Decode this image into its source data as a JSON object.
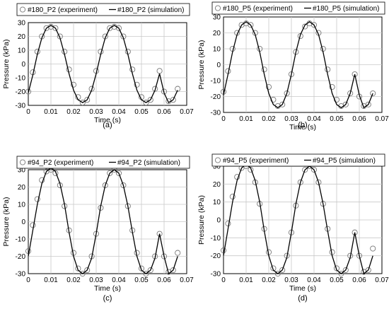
{
  "chart_data": [
    {
      "panel": "(a)",
      "type": "line",
      "xlabel": "Time (s)",
      "ylabel": "Pressure (kPa)",
      "xlim": [
        0,
        0.07
      ],
      "ylim": [
        -30,
        30
      ],
      "xticks": [
        "0",
        "0.01",
        "0.02",
        "0.03",
        "0.04",
        "0.05",
        "0.06",
        "0.07"
      ],
      "yticks": [
        "-30",
        "-20",
        "-10",
        "0",
        "10",
        "20",
        "30"
      ],
      "grid": true,
      "legend_position": "top",
      "series": [
        {
          "name": "#180_P2 (experiment)",
          "marker": "circle",
          "color": "#777777",
          "x": [
            0,
            0.002,
            0.004,
            0.006,
            0.008,
            0.01,
            0.012,
            0.014,
            0.016,
            0.018,
            0.02,
            0.022,
            0.024,
            0.026,
            0.028,
            0.03,
            0.032,
            0.034,
            0.036,
            0.038,
            0.04,
            0.042,
            0.044,
            0.046,
            0.048,
            0.05,
            0.052,
            0.054,
            0.056,
            0.058,
            0.06,
            0.062,
            0.064,
            0.066
          ],
          "y": [
            -20,
            -6,
            9,
            20,
            26,
            27,
            26,
            20,
            9,
            -4,
            -15,
            -24,
            -28,
            -26,
            -18,
            -5,
            9,
            20,
            26,
            27,
            26,
            20,
            9,
            -4,
            -15,
            -24,
            -28,
            -26,
            -18,
            -5,
            -20,
            -27,
            -26,
            -18
          ]
        },
        {
          "name": "#180_P2 (simulation)",
          "marker": "line",
          "color": "#000000",
          "x": [
            0,
            0.002,
            0.004,
            0.006,
            0.008,
            0.01,
            0.012,
            0.014,
            0.016,
            0.018,
            0.02,
            0.022,
            0.024,
            0.026,
            0.028,
            0.03,
            0.032,
            0.034,
            0.036,
            0.038,
            0.04,
            0.042,
            0.044,
            0.046,
            0.048,
            0.05,
            0.052,
            0.054,
            0.056,
            0.058,
            0.06,
            0.062,
            0.064,
            0.066
          ],
          "y": [
            -21,
            -8,
            7,
            19,
            26,
            28,
            26,
            19,
            7,
            -7,
            -19,
            -26,
            -28,
            -26,
            -19,
            -7,
            7,
            19,
            26,
            28,
            26,
            19,
            7,
            -7,
            -19,
            -26,
            -28,
            -26,
            -19,
            -7,
            -21,
            -28,
            -26,
            -19
          ]
        }
      ]
    },
    {
      "panel": "(b)",
      "type": "line",
      "xlabel": "Time (s)",
      "ylabel": "Pressure (kPa)",
      "xlim": [
        0,
        0.07
      ],
      "ylim": [
        -30,
        30
      ],
      "xticks": [
        "0",
        "0.01",
        "0.02",
        "0.03",
        "0.04",
        "0.05",
        "0.06",
        "0.07"
      ],
      "yticks": [
        "-30",
        "-20",
        "-10",
        "0",
        "10",
        "20",
        "30"
      ],
      "grid": true,
      "legend_position": "top",
      "series": [
        {
          "name": "#180_P5 (experiment)",
          "marker": "circle",
          "color": "#777777",
          "x": [
            0,
            0.002,
            0.004,
            0.006,
            0.008,
            0.01,
            0.012,
            0.014,
            0.016,
            0.018,
            0.02,
            0.022,
            0.024,
            0.026,
            0.028,
            0.03,
            0.032,
            0.034,
            0.036,
            0.038,
            0.04,
            0.042,
            0.044,
            0.046,
            0.048,
            0.05,
            0.052,
            0.054,
            0.056,
            0.058,
            0.06,
            0.062,
            0.064,
            0.066
          ],
          "y": [
            -17,
            -4,
            10,
            20,
            25,
            26,
            25,
            20,
            10,
            -3,
            -14,
            -22,
            -26,
            -25,
            -18,
            -6,
            8,
            18,
            24,
            26,
            25,
            20,
            10,
            -3,
            -14,
            -22,
            -26,
            -25,
            -18,
            -6,
            -20,
            -26,
            -25,
            -18
          ]
        },
        {
          "name": "#180_P5 (simulation)",
          "marker": "line",
          "color": "#000000",
          "x": [
            0,
            0.002,
            0.004,
            0.006,
            0.008,
            0.01,
            0.012,
            0.014,
            0.016,
            0.018,
            0.02,
            0.022,
            0.024,
            0.026,
            0.028,
            0.03,
            0.032,
            0.034,
            0.036,
            0.038,
            0.04,
            0.042,
            0.044,
            0.046,
            0.048,
            0.05,
            0.052,
            0.054,
            0.056,
            0.058,
            0.06,
            0.062,
            0.064,
            0.066
          ],
          "y": [
            -19,
            -6,
            8,
            19,
            25,
            27,
            25,
            19,
            8,
            -6,
            -18,
            -25,
            -27,
            -25,
            -18,
            -6,
            8,
            19,
            25,
            27,
            25,
            19,
            8,
            -6,
            -18,
            -25,
            -27,
            -25,
            -18,
            -6,
            -19,
            -27,
            -25,
            -18
          ]
        }
      ]
    },
    {
      "panel": "(c)",
      "type": "line",
      "xlabel": "Time (s)",
      "ylabel": "Pressure (kPa)",
      "xlim": [
        0,
        0.07
      ],
      "ylim": [
        -30,
        30
      ],
      "xticks": [
        "0",
        "0.01",
        "0.02",
        "0.03",
        "0.04",
        "0.05",
        "0.06",
        "0.07"
      ],
      "yticks": [
        "-30",
        "-20",
        "-10",
        "0",
        "10",
        "20",
        "30"
      ],
      "grid": true,
      "legend_position": "top",
      "series": [
        {
          "name": "#94_P2 (experiment)",
          "marker": "circle",
          "color": "#777777",
          "x": [
            0,
            0.002,
            0.004,
            0.006,
            0.008,
            0.01,
            0.012,
            0.014,
            0.016,
            0.018,
            0.02,
            0.022,
            0.024,
            0.026,
            0.028,
            0.03,
            0.032,
            0.034,
            0.036,
            0.038,
            0.04,
            0.042,
            0.044,
            0.046,
            0.048,
            0.05,
            0.052,
            0.054,
            0.056,
            0.058,
            0.06,
            0.062,
            0.064,
            0.066
          ],
          "y": [
            -17,
            -2,
            13,
            24,
            29,
            30,
            28,
            21,
            9,
            -5,
            -18,
            -27,
            -30,
            -28,
            -20,
            -7,
            8,
            21,
            28,
            30,
            28,
            21,
            9,
            -5,
            -18,
            -27,
            -30,
            -28,
            -20,
            -7,
            -20,
            -29,
            -28,
            -18
          ]
        },
        {
          "name": "#94_P2 (simulation)",
          "marker": "line",
          "color": "#000000",
          "x": [
            0,
            0.002,
            0.004,
            0.006,
            0.008,
            0.01,
            0.012,
            0.014,
            0.016,
            0.018,
            0.02,
            0.022,
            0.024,
            0.026,
            0.028,
            0.03,
            0.032,
            0.034,
            0.036,
            0.038,
            0.04,
            0.042,
            0.044,
            0.046,
            0.048,
            0.05,
            0.052,
            0.054,
            0.056,
            0.058,
            0.06,
            0.062,
            0.064,
            0.066
          ],
          "y": [
            -20,
            -5,
            10,
            22,
            29,
            31,
            29,
            22,
            10,
            -6,
            -20,
            -28,
            -30,
            -28,
            -21,
            -7,
            9,
            21,
            28,
            30,
            28,
            21,
            9,
            -6,
            -20,
            -28,
            -30,
            -28,
            -21,
            -7,
            -20,
            -30,
            -28,
            -20
          ]
        }
      ]
    },
    {
      "panel": "(d)",
      "type": "line",
      "xlabel": "Time (s)",
      "ylabel": "Pressure (kPa)",
      "xlim": [
        0,
        0.07
      ],
      "ylim": [
        -30,
        30
      ],
      "xticks": [
        "0",
        "0.01",
        "0.02",
        "0.03",
        "0.04",
        "0.05",
        "0.06",
        "0.07"
      ],
      "yticks": [
        "-30",
        "-20",
        "-10",
        "0",
        "10",
        "20",
        "30"
      ],
      "grid": true,
      "legend_position": "top",
      "series": [
        {
          "name": "#94_P5 (experiment)",
          "marker": "circle",
          "color": "#777777",
          "x": [
            0,
            0.002,
            0.004,
            0.006,
            0.008,
            0.01,
            0.012,
            0.014,
            0.016,
            0.018,
            0.02,
            0.022,
            0.024,
            0.026,
            0.028,
            0.03,
            0.032,
            0.034,
            0.036,
            0.038,
            0.04,
            0.042,
            0.044,
            0.046,
            0.048,
            0.05,
            0.052,
            0.054,
            0.056,
            0.058,
            0.06,
            0.062,
            0.064,
            0.066
          ],
          "y": [
            -17,
            -2,
            13,
            24,
            29,
            30,
            28,
            21,
            9,
            -5,
            -18,
            -27,
            -30,
            -28,
            -20,
            -7,
            8,
            21,
            28,
            30,
            28,
            21,
            9,
            -5,
            -18,
            -27,
            -30,
            -28,
            -20,
            -7,
            -20,
            -29,
            -28,
            -16
          ]
        },
        {
          "name": "#94_P5 (simulation)",
          "marker": "line",
          "color": "#000000",
          "x": [
            0,
            0.002,
            0.004,
            0.006,
            0.008,
            0.01,
            0.012,
            0.014,
            0.016,
            0.018,
            0.02,
            0.022,
            0.024,
            0.026,
            0.028,
            0.03,
            0.032,
            0.034,
            0.036,
            0.038,
            0.04,
            0.042,
            0.044,
            0.046,
            0.048,
            0.05,
            0.052,
            0.054,
            0.056,
            0.058,
            0.06,
            0.062,
            0.064,
            0.066
          ],
          "y": [
            -20,
            -5,
            10,
            22,
            29,
            31,
            29,
            22,
            10,
            -6,
            -20,
            -28,
            -30,
            -28,
            -21,
            -7,
            9,
            21,
            28,
            30,
            28,
            21,
            9,
            -6,
            -20,
            -28,
            -30,
            -28,
            -21,
            -7,
            -20,
            -30,
            -28,
            -20
          ]
        }
      ]
    }
  ]
}
